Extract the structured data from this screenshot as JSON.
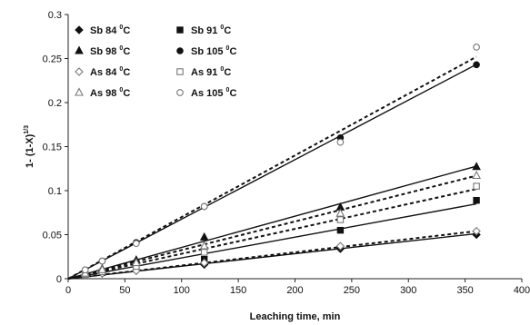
{
  "chart_data": {
    "type": "scatter",
    "xlabel": "Leaching time, min",
    "ylabel": "1- (1-X)",
    "ylabel_exponent": "1/3",
    "xlim": [
      0,
      400
    ],
    "ylim": [
      0,
      0.3
    ],
    "x_ticks": [
      "0",
      "50",
      "100",
      "150",
      "200",
      "250",
      "300",
      "350",
      "400"
    ],
    "y_ticks": [
      "0",
      "0.05",
      "0.1",
      "0.15",
      "0.2",
      "0.25",
      "0.3"
    ],
    "grid": false,
    "legend": {
      "position": "top-left",
      "columns": 2
    },
    "series": [
      {
        "name": "Sb 84 ⁰C",
        "label_prefix": "Sb 84",
        "label_temp": "C",
        "marker": "diamond-filled",
        "fit": "solid",
        "fit_slope": 0.000142,
        "points": [
          {
            "x": 15,
            "y": 0.004
          },
          {
            "x": 30,
            "y": 0.006
          },
          {
            "x": 60,
            "y": 0.009
          },
          {
            "x": 120,
            "y": 0.016
          },
          {
            "x": 240,
            "y": 0.034
          },
          {
            "x": 360,
            "y": 0.05
          }
        ]
      },
      {
        "name": "Sb 91 ⁰C",
        "label_prefix": "Sb 91",
        "label_temp": "C",
        "marker": "square-filled",
        "fit": "solid",
        "fit_slope": 0.000236,
        "points": [
          {
            "x": 15,
            "y": 0.005
          },
          {
            "x": 30,
            "y": 0.007
          },
          {
            "x": 60,
            "y": 0.012
          },
          {
            "x": 120,
            "y": 0.022
          },
          {
            "x": 240,
            "y": 0.055
          },
          {
            "x": 360,
            "y": 0.089
          }
        ]
      },
      {
        "name": "Sb 98 ⁰C",
        "label_prefix": "Sb 98",
        "label_temp": "C",
        "marker": "triangle-filled",
        "fit": "solid",
        "fit_slope": 0.000355,
        "points": [
          {
            "x": 15,
            "y": 0.006
          },
          {
            "x": 30,
            "y": 0.011
          },
          {
            "x": 60,
            "y": 0.021
          },
          {
            "x": 120,
            "y": 0.047
          },
          {
            "x": 240,
            "y": 0.081
          },
          {
            "x": 360,
            "y": 0.127
          }
        ]
      },
      {
        "name": "Sb 105 ⁰C",
        "label_prefix": "Sb 105",
        "label_temp": "C",
        "marker": "circle-filled",
        "fit": "solid",
        "fit_slope": 0.000676,
        "points": [
          {
            "x": 15,
            "y": 0.01
          },
          {
            "x": 30,
            "y": 0.02
          },
          {
            "x": 60,
            "y": 0.041
          },
          {
            "x": 120,
            "y": 0.082
          },
          {
            "x": 240,
            "y": 0.16
          },
          {
            "x": 360,
            "y": 0.243
          }
        ]
      },
      {
        "name": "As 84 ⁰C",
        "label_prefix": "As 84",
        "label_temp": "C",
        "marker": "diamond-open",
        "fit": "dashed",
        "fit_slope": 0.00015,
        "points": [
          {
            "x": 15,
            "y": 0.004
          },
          {
            "x": 30,
            "y": 0.006
          },
          {
            "x": 60,
            "y": 0.009
          },
          {
            "x": 120,
            "y": 0.018
          },
          {
            "x": 240,
            "y": 0.037
          },
          {
            "x": 360,
            "y": 0.054
          }
        ]
      },
      {
        "name": "As 91 ⁰C",
        "label_prefix": "As 91",
        "label_temp": "C",
        "marker": "square-open",
        "fit": "dashed",
        "fit_slope": 0.000283,
        "points": [
          {
            "x": 15,
            "y": 0.005
          },
          {
            "x": 30,
            "y": 0.008
          },
          {
            "x": 60,
            "y": 0.014
          },
          {
            "x": 120,
            "y": 0.03
          },
          {
            "x": 240,
            "y": 0.067
          },
          {
            "x": 360,
            "y": 0.105
          }
        ]
      },
      {
        "name": "As 98 ⁰C",
        "label_prefix": "As 98",
        "label_temp": "C",
        "marker": "triangle-open",
        "fit": "dashed",
        "fit_slope": 0.000325,
        "points": [
          {
            "x": 15,
            "y": 0.006
          },
          {
            "x": 30,
            "y": 0.01
          },
          {
            "x": 60,
            "y": 0.018
          },
          {
            "x": 120,
            "y": 0.037
          },
          {
            "x": 240,
            "y": 0.074
          },
          {
            "x": 360,
            "y": 0.117
          }
        ]
      },
      {
        "name": "As 105 ⁰C",
        "label_prefix": "As 105",
        "label_temp": "C",
        "marker": "circle-open",
        "fit": "dashed",
        "fit_slope": 0.0007,
        "points": [
          {
            "x": 15,
            "y": 0.01
          },
          {
            "x": 30,
            "y": 0.02
          },
          {
            "x": 60,
            "y": 0.04
          },
          {
            "x": 120,
            "y": 0.082
          },
          {
            "x": 240,
            "y": 0.155
          },
          {
            "x": 360,
            "y": 0.263
          }
        ]
      }
    ]
  }
}
